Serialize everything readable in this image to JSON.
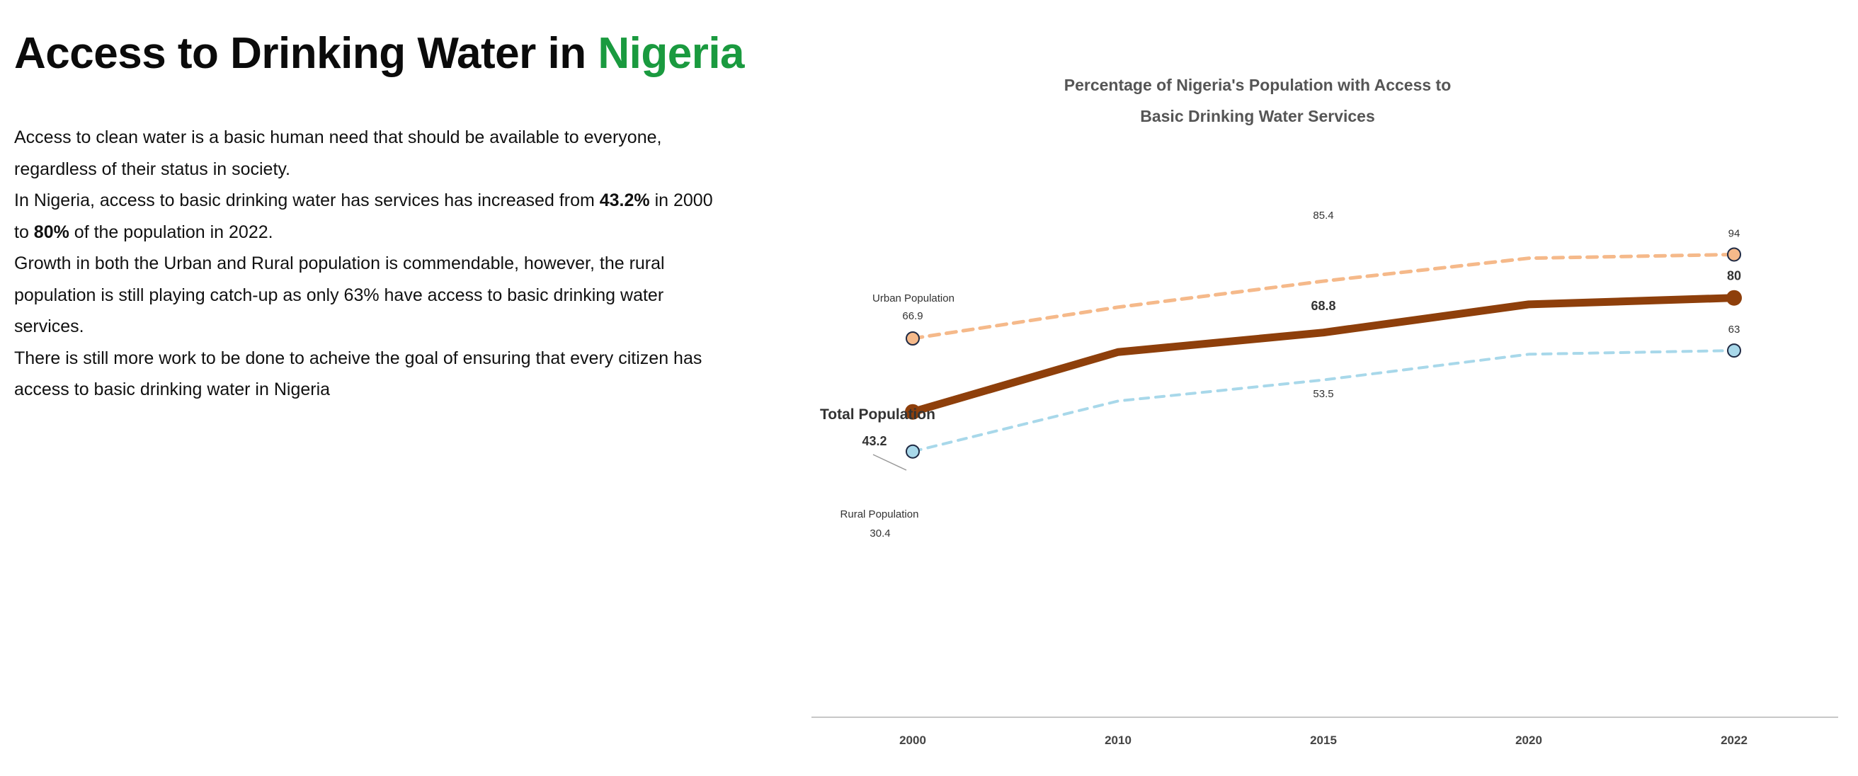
{
  "title": {
    "prefix": "Access to Drinking Water in ",
    "highlight": "Nigeria"
  },
  "colors": {
    "highlight": "#1a9a3f",
    "total": "#8e3f0b",
    "urban": "#f5b98a",
    "rural": "#a8d8ea",
    "axis": "#c8c8c8",
    "chart_title": "#555555"
  },
  "paragraphs": {
    "p1": "Access to clean water is a basic human need that should be available to everyone, regardless of their status in society.",
    "p2a": "In Nigeria, access to basic drinking water has services has increased from ",
    "p2b": "43.2%",
    "p2c": " in 2000 to ",
    "p2d": "80%",
    "p2e": " of the population in 2022.",
    "p3": "Growth in both the Urban and Rural population is commendable, however, the rural population is still playing catch-up as only 63% have access to basic drinking water services.",
    "p4": "There is still more work to be done to acheive the goal of ensuring that every citizen has access to basic drinking water in Nigeria"
  },
  "chart_data": {
    "type": "line",
    "title_line1": "Percentage of Nigeria's Population with Access to",
    "title_line2": "Basic Drinking Water Services",
    "categories": [
      "2000",
      "2010",
      "2015",
      "2020",
      "2022"
    ],
    "series": [
      {
        "name": "Urban Population",
        "values": [
          66.9,
          77.0,
          85.4,
          92.8,
          94.0
        ],
        "style": "dashed",
        "labels": [
          "66.9",
          "",
          "85.4",
          "",
          "94"
        ]
      },
      {
        "name": "Total Population",
        "values": [
          43.2,
          62.5,
          68.8,
          77.9,
          80.0
        ],
        "style": "solid",
        "labels": [
          "43.2",
          "",
          "68.8",
          "",
          "80"
        ]
      },
      {
        "name": "Rural Population",
        "values": [
          30.4,
          46.7,
          53.5,
          61.8,
          63.0
        ],
        "style": "dashed",
        "labels": [
          "30.4",
          "",
          "53.5",
          "",
          "63"
        ]
      }
    ],
    "grid": false,
    "legend": "inline labels at line start"
  }
}
